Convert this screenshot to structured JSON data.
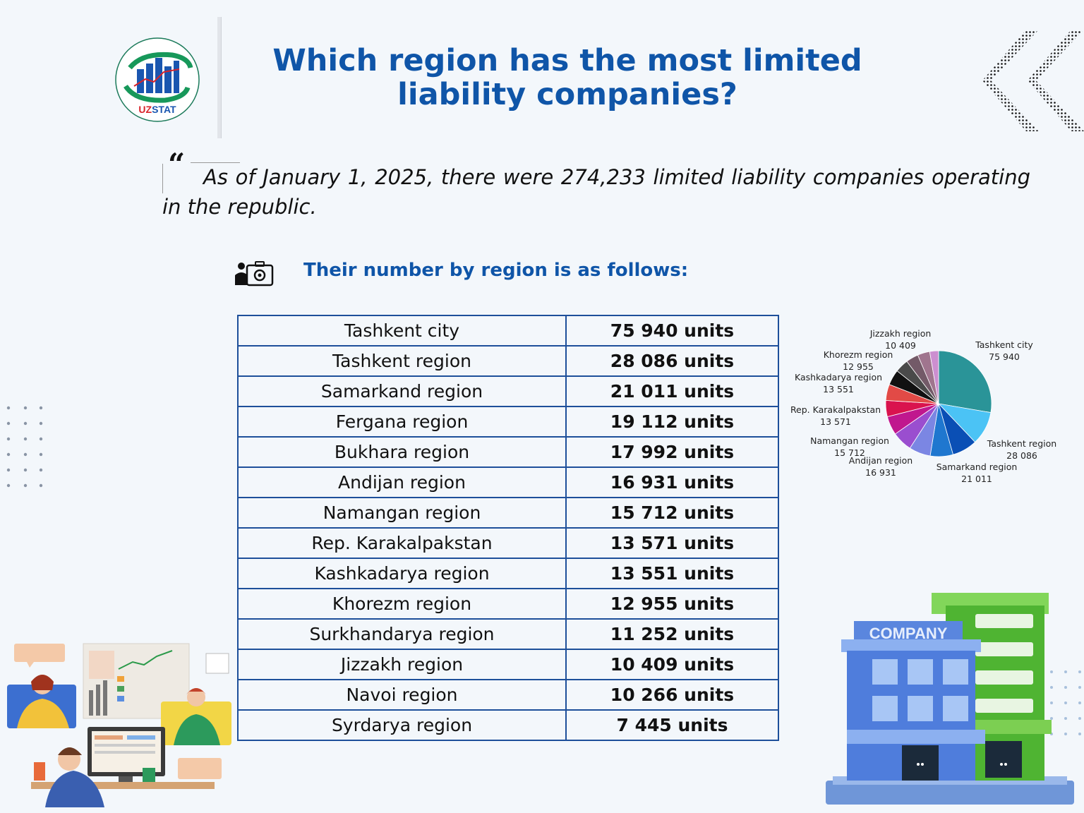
{
  "logo": {
    "text": "UZSTAT"
  },
  "header": {
    "title": "Which region has the most limited liability companies?"
  },
  "intro": {
    "text": "As of January 1, 2025, there were 274,233 limited liability companies operating in the republic."
  },
  "section": {
    "subtitle": "Their number by region is as follows:"
  },
  "table": {
    "rows": [
      {
        "region": "Tashkent city",
        "value": "75 940 units"
      },
      {
        "region": "Tashkent region",
        "value": "28 086 units"
      },
      {
        "region": "Samarkand region",
        "value": "21 011 units"
      },
      {
        "region": "Fergana region",
        "value": "19 112 units"
      },
      {
        "region": "Bukhara region",
        "value": "17 992 units"
      },
      {
        "region": "Andijan region",
        "value": "16 931 units"
      },
      {
        "region": "Namangan region",
        "value": "15 712 units"
      },
      {
        "region": "Rep. Karakalpakstan",
        "value": "13 571 units"
      },
      {
        "region": "Kashkadarya region",
        "value": "13 551 units"
      },
      {
        "region": "Khorezm region",
        "value": "12 955 units"
      },
      {
        "region": "Surkhandarya region",
        "value": "11 252 units"
      },
      {
        "region": "Jizzakh region",
        "value": "10 409 units"
      },
      {
        "region": "Navoi region",
        "value": "10 266 units"
      },
      {
        "region": "Syrdarya region",
        "value": "7 445 units"
      }
    ]
  },
  "chart_data": {
    "type": "pie",
    "title": "",
    "categories": [
      "Tashkent city",
      "Tashkent region",
      "Samarkand region",
      "Fergana region",
      "Bukhara region",
      "Andijan region",
      "Namangan region",
      "Rep. Karakalpakstan",
      "Kashkadarya region",
      "Khorezm region",
      "Surkhandarya region",
      "Jizzakh region",
      "Navoi region",
      "Syrdarya region"
    ],
    "values": [
      75940,
      28086,
      21011,
      19112,
      17992,
      16931,
      15712,
      13571,
      13551,
      12955,
      11252,
      10409,
      10266,
      7445
    ],
    "value_labels": [
      "75 940",
      "28 086",
      "21 011",
      "19 112",
      "17 992",
      "16 931",
      "15 712",
      "13 571",
      "13 551",
      "12 955",
      "11 252",
      "10 409",
      "10 266",
      "7 445"
    ],
    "labeled": [
      true,
      true,
      true,
      false,
      false,
      true,
      true,
      true,
      true,
      true,
      false,
      true,
      false,
      false
    ],
    "colors": [
      "#2a9498",
      "#4bc3f5",
      "#0a4fb5",
      "#1f77cf",
      "#7b86e3",
      "#9a4ecf",
      "#c0178e",
      "#d9134e",
      "#e24a46",
      "#111111",
      "#4a4a4a",
      "#735a68",
      "#a0758e",
      "#cc8fd0"
    ]
  },
  "decor": {
    "building_sign": "COMPANY",
    "colors": {
      "title": "#0f55a8",
      "table_border": "#1d4f9a",
      "background": "#f3f7fb"
    }
  }
}
